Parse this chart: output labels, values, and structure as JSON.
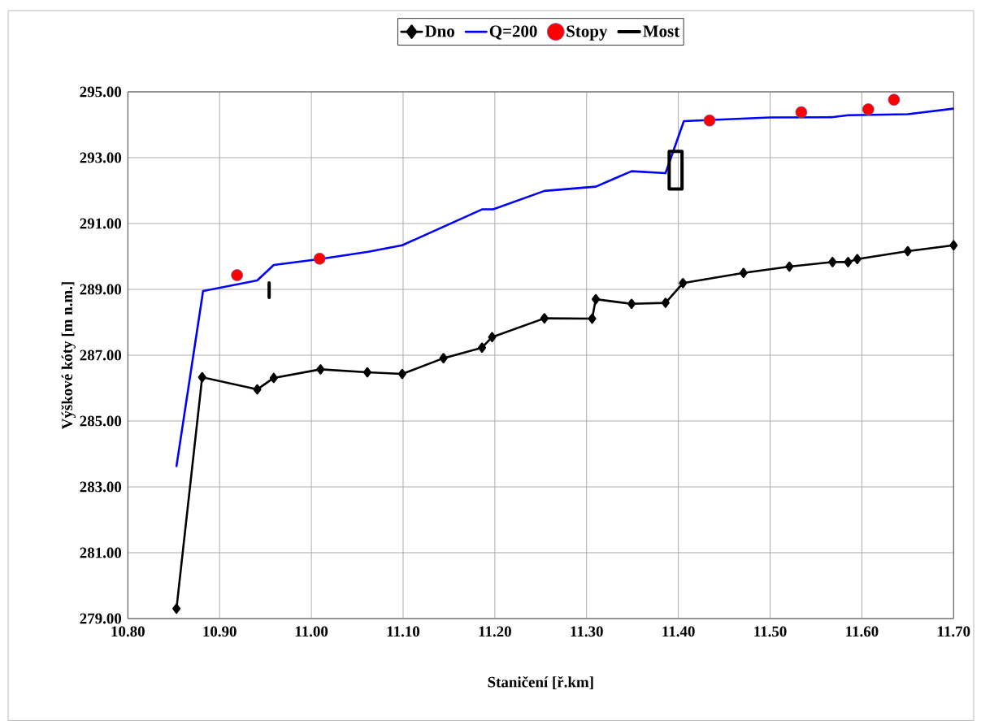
{
  "chart_data": {
    "type": "line",
    "xlabel": "Staničení [ř.km]",
    "ylabel": "Výškové kóty [m n.m.]",
    "xlim": [
      10.8,
      11.7
    ],
    "ylim": [
      279,
      295
    ],
    "xticks": [
      {
        "value": 10.8,
        "label": "10.80"
      },
      {
        "value": 10.9,
        "label": "10.90"
      },
      {
        "value": 11.0,
        "label": "11.00"
      },
      {
        "value": 11.1,
        "label": "11.10"
      },
      {
        "value": 11.2,
        "label": "11.20"
      },
      {
        "value": 11.3,
        "label": "11.30"
      },
      {
        "value": 11.4,
        "label": "11.40"
      },
      {
        "value": 11.5,
        "label": "11.50"
      },
      {
        "value": 11.6,
        "label": "11.60"
      },
      {
        "value": 11.7,
        "label": "11.70"
      }
    ],
    "yticks": [
      {
        "value": 279,
        "label": "279.00"
      },
      {
        "value": 281,
        "label": "281.00"
      },
      {
        "value": 283,
        "label": "283.00"
      },
      {
        "value": 285,
        "label": "285.00"
      },
      {
        "value": 287,
        "label": "287.00"
      },
      {
        "value": 289,
        "label": "289.00"
      },
      {
        "value": 291,
        "label": "291.00"
      },
      {
        "value": 293,
        "label": "293.00"
      },
      {
        "value": 295,
        "label": "295.00"
      }
    ],
    "grid": true,
    "legend": "top",
    "series": [
      {
        "name": "Dno",
        "type": "line",
        "color": "#000000",
        "marker": "diamond",
        "line_style": "solid",
        "x": [
          10.853,
          10.881,
          10.941,
          10.959,
          11.01,
          11.061,
          11.099,
          11.144,
          11.186,
          11.197,
          11.254,
          11.306,
          11.31,
          11.349,
          11.386,
          11.405,
          11.471,
          11.521,
          11.568,
          11.585,
          11.595,
          11.65,
          11.7
        ],
        "values": [
          279.3,
          286.33,
          285.96,
          286.31,
          286.57,
          286.48,
          286.43,
          286.91,
          287.23,
          287.55,
          288.12,
          288.11,
          288.7,
          288.56,
          288.59,
          289.19,
          289.5,
          289.69,
          289.83,
          289.83,
          289.92,
          290.16,
          290.34
        ]
      },
      {
        "name": "Q=200",
        "type": "line",
        "color": "#0000ff",
        "marker": "none",
        "line_style": "solid",
        "x": [
          10.853,
          10.882,
          10.941,
          10.959,
          11.009,
          11.062,
          11.099,
          11.186,
          11.198,
          11.254,
          11.31,
          11.349,
          11.386,
          11.406,
          11.5,
          11.567,
          11.585,
          11.65,
          11.7
        ],
        "values": [
          283.63,
          288.95,
          289.27,
          289.74,
          289.92,
          290.14,
          290.34,
          291.43,
          291.43,
          291.99,
          292.12,
          292.59,
          292.53,
          294.11,
          294.22,
          294.23,
          294.29,
          294.32,
          294.49
        ]
      },
      {
        "name": "Stopy",
        "type": "scatter",
        "color": "#ff0000",
        "marker": "circle",
        "x": [
          10.919,
          11.009,
          11.434,
          11.534,
          11.607,
          11.635
        ],
        "values": [
          289.43,
          289.93,
          294.13,
          294.38,
          294.47,
          294.76
        ]
      },
      {
        "name": "Most",
        "type": "line",
        "color": "#000000",
        "marker": "none",
        "line_style": "solid",
        "x": [
          10.954,
          10.954
        ],
        "values": [
          289.2,
          288.75
        ]
      },
      {
        "type": "line",
        "color": "#000000",
        "marker": "none",
        "line_style": "solid",
        "x": [
          11.39,
          11.39,
          11.404,
          11.404,
          11.39,
          11.39
        ],
        "values": [
          292.6,
          293.19,
          293.19,
          292.05,
          292.05,
          292.62
        ]
      }
    ]
  }
}
